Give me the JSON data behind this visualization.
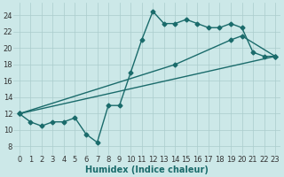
{
  "background_color": "#cce8e8",
  "grid_color": "#aacccc",
  "line_color": "#1a6b6b",
  "marker": "D",
  "markersize": 2.5,
  "linewidth": 1.0,
  "xlabel": "Humidex (Indice chaleur)",
  "xlabel_fontsize": 7,
  "tick_fontsize": 6,
  "xlim": [
    -0.5,
    23.5
  ],
  "ylim": [
    7,
    25.5
  ],
  "yticks": [
    8,
    10,
    12,
    14,
    16,
    18,
    20,
    22,
    24
  ],
  "xticks": [
    0,
    1,
    2,
    3,
    4,
    5,
    6,
    7,
    8,
    9,
    10,
    11,
    12,
    13,
    14,
    15,
    16,
    17,
    18,
    19,
    20,
    21,
    22,
    23
  ],
  "line1_x": [
    0,
    1,
    2,
    3,
    4,
    5,
    6,
    7,
    8,
    9,
    10,
    11,
    12,
    13,
    14,
    15,
    16,
    17,
    18,
    19,
    20,
    21,
    22,
    23
  ],
  "line1_y": [
    12,
    11,
    10.5,
    11,
    11,
    11.5,
    9.5,
    8.5,
    13,
    13,
    17,
    21,
    24.5,
    23,
    23,
    23.5,
    23,
    22.5,
    22.5,
    23,
    22.5,
    19.5,
    19,
    19
  ],
  "line2_x": [
    0,
    14,
    19,
    20,
    23
  ],
  "line2_y": [
    12,
    18,
    21,
    21.5,
    19
  ],
  "line3_x": [
    0,
    23
  ],
  "line3_y": [
    12,
    19
  ]
}
